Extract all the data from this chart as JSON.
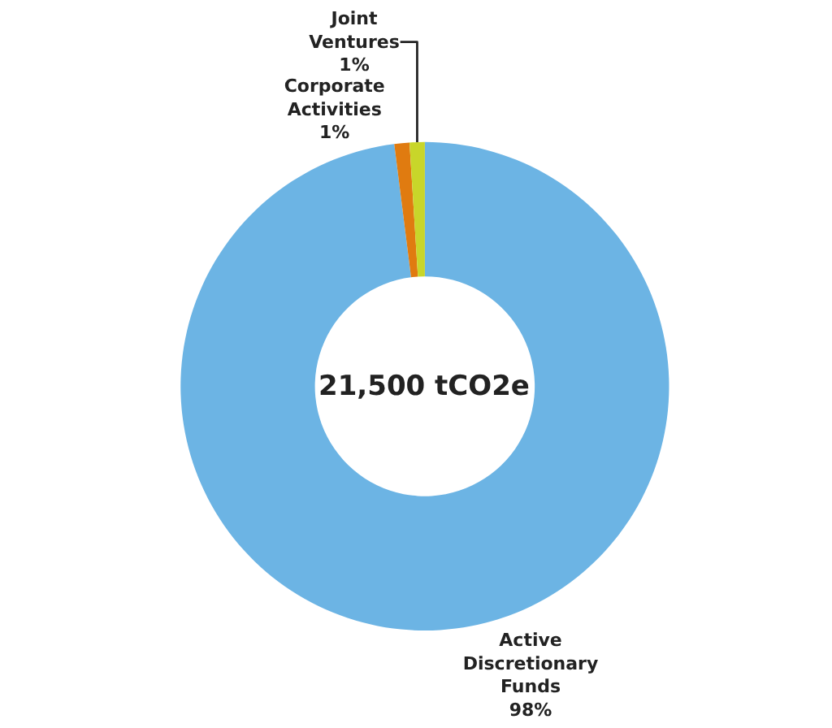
{
  "chart_data": {
    "type": "donut",
    "categories": [
      "Active Discretionary Funds",
      "Corporate Activities",
      "Joint Ventures"
    ],
    "values": [
      98,
      1,
      1
    ],
    "value_labels": [
      "98%",
      "1%",
      "1%"
    ],
    "colors": [
      "#6cb4e4",
      "#e07b10",
      "#c8d62a"
    ],
    "annotations": [
      "21,500 tCO2e"
    ],
    "legend": false
  }
}
